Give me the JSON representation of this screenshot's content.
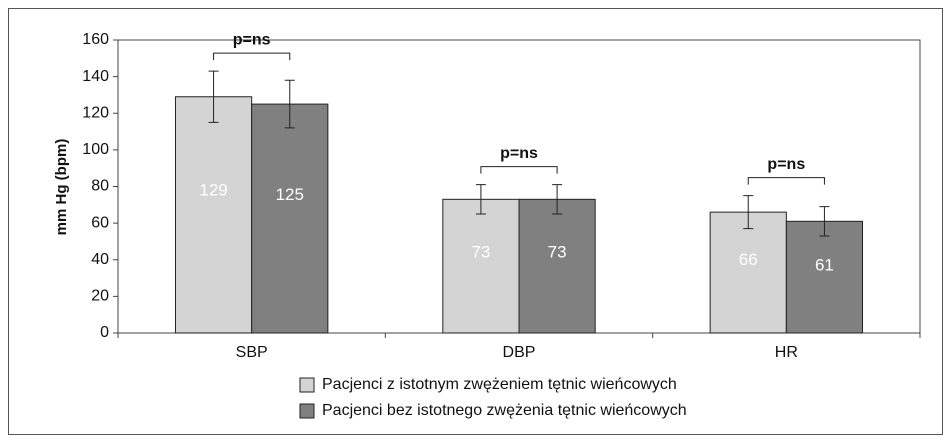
{
  "chart_data": {
    "type": "bar",
    "y_label": "mm Hg (bpm)",
    "categories": [
      "SBP",
      "DBP",
      "HR"
    ],
    "series": [
      {
        "name": "Pacjenci z istotnym zwężeniem tętnic wieńcowych",
        "color": "#d4d4d4",
        "values": [
          129,
          73,
          66
        ],
        "errors": [
          14,
          8,
          9
        ]
      },
      {
        "name": "Pacjenci bez istotnego zwężenia tętnic wieńcowych",
        "color": "#808080",
        "values": [
          125,
          73,
          61
        ],
        "errors": [
          13,
          8,
          8
        ]
      }
    ],
    "annotations": [
      "p=ns",
      "p=ns",
      "p=ns"
    ],
    "ylim": [
      0,
      160
    ],
    "yticks": [
      0,
      20,
      40,
      60,
      80,
      100,
      120,
      140,
      160
    ],
    "grid": false,
    "legend": "bottom"
  }
}
